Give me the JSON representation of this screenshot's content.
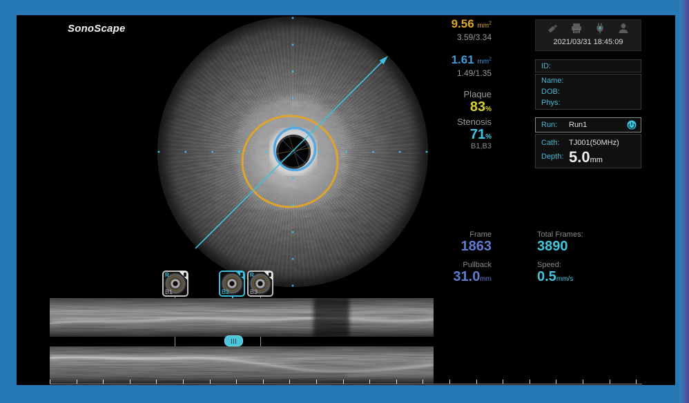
{
  "brand": {
    "logo": "SonoScape"
  },
  "measurements": {
    "vessel": {
      "value": "9.56",
      "unit_base": "mm",
      "unit_sup": "2",
      "diameters": "3.59/3.34"
    },
    "lumen": {
      "value": "1.61",
      "unit_base": "mm",
      "unit_sup": "2",
      "diameters": "1.49/1.35"
    },
    "plaque": {
      "label": "Plaque",
      "value": "83",
      "unit": "%"
    },
    "stenosis": {
      "label": "Stenosis",
      "value": "71",
      "unit": "%",
      "ref": "B1,B3"
    }
  },
  "toolbar": {
    "datetime": "2021/03/31 18:45:09",
    "icons": [
      "usb-icon",
      "printer-icon",
      "power-plug-icon",
      "user-icon"
    ]
  },
  "patient": {
    "id_label": "ID:",
    "name_label": "Name:",
    "dob_label": "DOB:",
    "phys_label": "Phys:"
  },
  "run_info": {
    "run_label": "Run:",
    "run_value": "Run1",
    "cath_label": "Cath:",
    "cath_value": "TJ001(50MHz)",
    "depth_label": "Depth:",
    "depth_value": "5.0",
    "depth_unit": "mm"
  },
  "playback": {
    "frame_label": "Frame",
    "frame_value": "1863",
    "total_label": "Total Frames:",
    "total_value": "3890",
    "pullback_label": "Pullback",
    "pullback_value": "31.0",
    "pullback_unit": "mm",
    "speed_label": "Speed:",
    "speed_value": "0.5",
    "speed_unit": "mm/s"
  },
  "bookmarks": {
    "r_badge": "R",
    "items": [
      {
        "label": "B1",
        "has_r": true,
        "selected": false
      },
      {
        "label": "B2",
        "has_r": false,
        "selected": true
      },
      {
        "label": "B3",
        "has_r": true,
        "selected": false
      }
    ]
  },
  "colors": {
    "frame_blue": "#2779B6",
    "accent_cyan": "#3FC6E0",
    "vessel_yellow": "#DFA62B",
    "lumen_blue": "#3D9BD9",
    "plaque_yellow": "#D9D12E",
    "frame_number_blue": "#5F7BD0",
    "label_gray": "#9A9A9A"
  }
}
